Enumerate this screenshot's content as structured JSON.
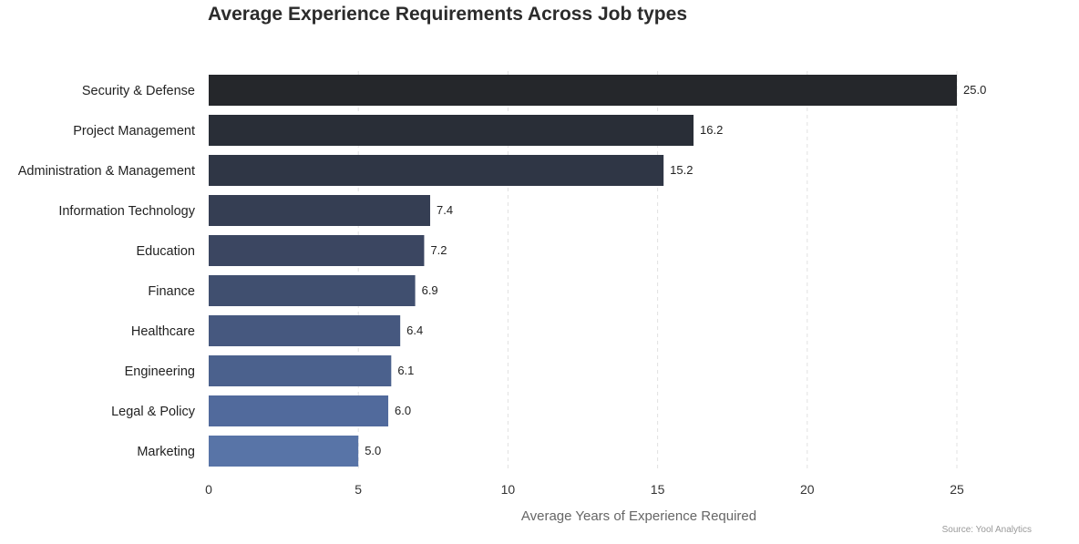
{
  "chart_data": {
    "type": "bar",
    "orientation": "horizontal",
    "title": "Average Experience Requirements Across Job types",
    "xlabel": "Average Years of Experience Required",
    "ylabel": "",
    "source": "Source: Yool Analytics",
    "xlim": [
      0,
      25
    ],
    "xticks": [
      "0",
      "5",
      "10",
      "15",
      "20",
      "25"
    ],
    "grid": "vertical dashed",
    "legend": "none",
    "categories": [
      "Security & Defense",
      "Project Management",
      "Administration & Management",
      "Information Technology",
      "Education",
      "Finance",
      "Healthcare",
      "Engineering",
      "Legal & Policy",
      "Marketing"
    ],
    "values": [
      25.0,
      16.2,
      15.2,
      7.4,
      7.2,
      6.9,
      6.4,
      6.1,
      6.0,
      5.0
    ],
    "value_labels": [
      "25.0",
      "16.2",
      "15.2",
      "7.4",
      "7.2",
      "6.9",
      "6.4",
      "6.1",
      "6.0",
      "5.0"
    ],
    "colors": [
      "#25272b",
      "#292e37",
      "#2f3645",
      "#353e53",
      "#3b4661",
      "#404f6f",
      "#46587f",
      "#4b618d",
      "#516a9c",
      "#5874a7"
    ],
    "label_color": "#222222",
    "axis_label_color": "#666666",
    "grid_color": "#e2e2e2"
  }
}
